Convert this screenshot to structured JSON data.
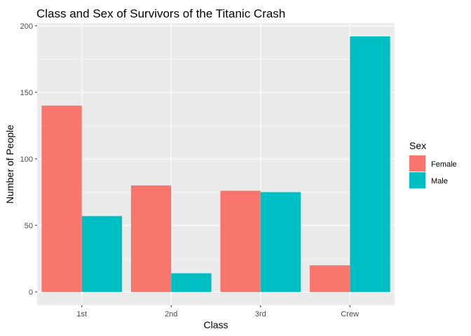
{
  "chart_data": {
    "type": "bar",
    "title": "Class and Sex of Survivors of the Titanic Crash",
    "xlabel": "Class",
    "ylabel": "Number of People",
    "categories": [
      "1st",
      "2nd",
      "3rd",
      "Crew"
    ],
    "series": [
      {
        "name": "Female",
        "color": "#F8766D",
        "values": [
          140,
          80,
          76,
          20
        ]
      },
      {
        "name": "Male",
        "color": "#00BFC4",
        "values": [
          57,
          14,
          75,
          192
        ]
      }
    ],
    "ylim": [
      -10,
      202
    ],
    "yticks": [
      0,
      50,
      100,
      150,
      200
    ],
    "grid": true,
    "panel_background": "#EBEBEB",
    "legend": {
      "title": "Sex",
      "placement": "right",
      "entries": [
        "Female",
        "Male"
      ]
    }
  }
}
